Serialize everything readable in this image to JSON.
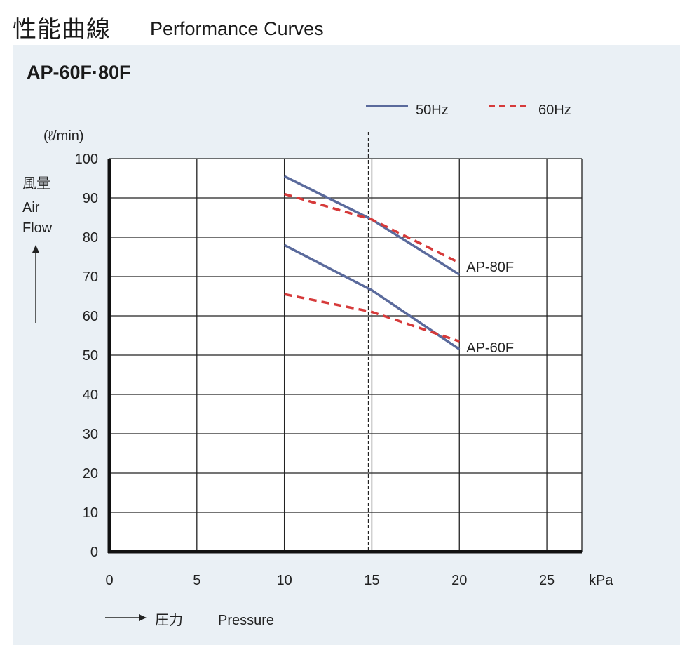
{
  "header": {
    "title_jp": "性能曲線",
    "title_en": "Performance Curves"
  },
  "model": "AP-60F·80F",
  "chart_data": {
    "type": "line",
    "title": "AP-60F·80F",
    "xlabel_jp": "圧力",
    "xlabel": "Pressure",
    "x_unit": "kPa",
    "ylabel_jp": "風量",
    "ylabel": "Air Flow",
    "y_unit": "(ℓ/min)",
    "xlim": [
      0,
      27
    ],
    "ylim": [
      0,
      100
    ],
    "x_ticks": [
      0,
      5,
      10,
      15,
      20,
      25
    ],
    "y_ticks": [
      0,
      10,
      20,
      30,
      40,
      50,
      60,
      70,
      80,
      90,
      100
    ],
    "grid": true,
    "legend_position": "top-right",
    "legend": [
      {
        "label": "50Hz",
        "style": "solid",
        "color": "#5a6a9c"
      },
      {
        "label": "60Hz",
        "style": "dashed",
        "color": "#d63a3a"
      }
    ],
    "reference_line_x": 14.8,
    "series": [
      {
        "name": "AP-80F 50Hz",
        "freq": "50Hz",
        "style": "solid",
        "color": "#5a6a9c",
        "x": [
          10,
          15,
          20
        ],
        "y": [
          95.5,
          84.5,
          70.5
        ]
      },
      {
        "name": "AP-80F 60Hz",
        "freq": "60Hz",
        "style": "dashed",
        "color": "#d63a3a",
        "x": [
          10,
          15,
          20
        ],
        "y": [
          91,
          84.5,
          73.5
        ]
      },
      {
        "name": "AP-60F 50Hz",
        "freq": "50Hz",
        "style": "solid",
        "color": "#5a6a9c",
        "x": [
          10,
          15,
          20
        ],
        "y": [
          78,
          66.5,
          51.5
        ]
      },
      {
        "name": "AP-60F 60Hz",
        "freq": "60Hz",
        "style": "dashed",
        "color": "#d63a3a",
        "x": [
          10,
          15,
          20
        ],
        "y": [
          65.5,
          61,
          53.5
        ]
      }
    ],
    "annotations": [
      {
        "text": "AP-80F",
        "x": 20,
        "y": 73
      },
      {
        "text": "AP-60F",
        "x": 20,
        "y": 52.5
      }
    ]
  }
}
